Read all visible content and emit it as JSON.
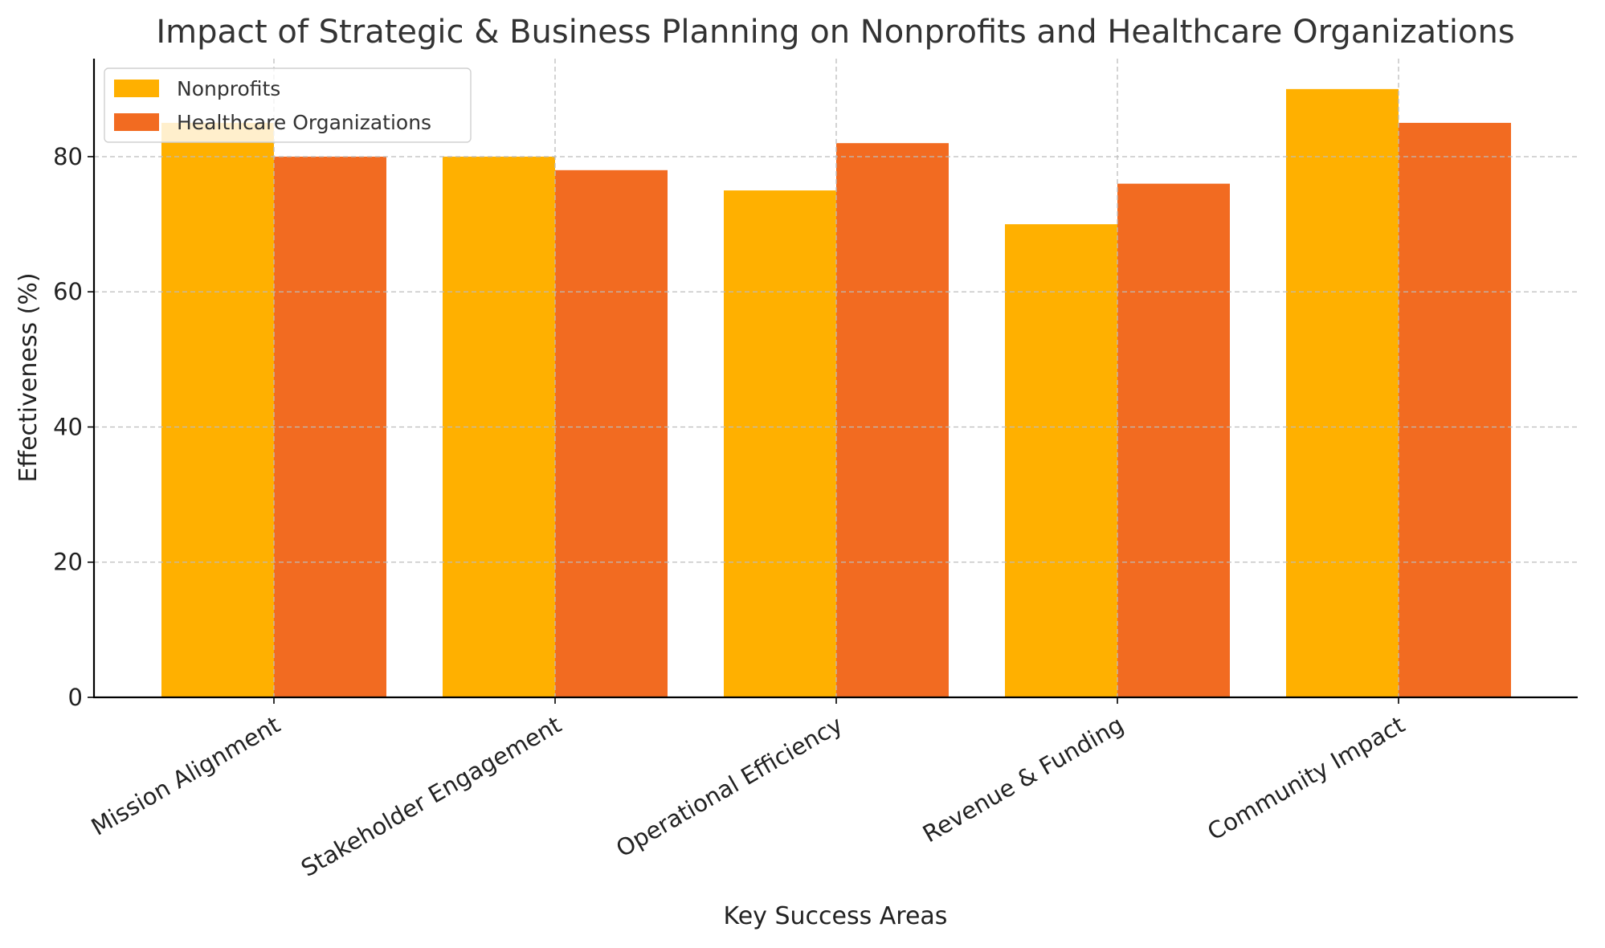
{
  "chart_data": {
    "type": "bar",
    "title": "Impact of Strategic & Business Planning on Nonprofits and Healthcare Organizations",
    "xlabel": "Key Success Areas",
    "ylabel": "Effectiveness (%)",
    "categories": [
      "Mission Alignment",
      "Stakeholder Engagement",
      "Operational Efficiency",
      "Revenue & Funding",
      "Community Impact"
    ],
    "series": [
      {
        "name": "Nonprofits",
        "values": [
          85,
          80,
          75,
          70,
          90
        ],
        "color": "#FFB000"
      },
      {
        "name": "Healthcare Organizations",
        "values": [
          80,
          78,
          82,
          76,
          85
        ],
        "color": "#F26B21"
      }
    ],
    "ylim": [
      0,
      94.5
    ],
    "yticks": [
      0,
      20,
      40,
      60,
      80
    ],
    "grid": true,
    "legend_position": "top-left"
  }
}
